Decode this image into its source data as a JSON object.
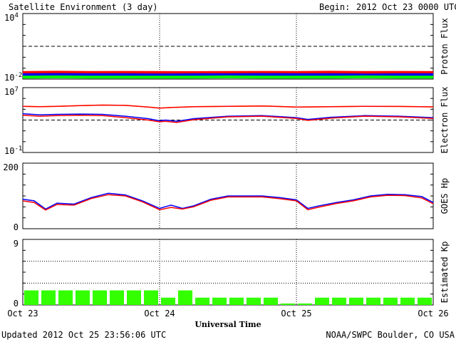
{
  "header": {
    "title": "Satellite Environment (3 day)",
    "begin_label": "Begin:",
    "begin_value": "2012 Oct 23 0000 UTC"
  },
  "footer": {
    "updated": "Updated 2012 Oct 25 23:56:06 UTC",
    "credit": "NOAA/SWPC Boulder, CO USA"
  },
  "colors": {
    "red": "#ff0000",
    "blue": "#0000ff",
    "green": "#00ff00",
    "orange": "#ff9900",
    "kp_bar": "#33ff00"
  },
  "chart_data": [
    {
      "type": "line",
      "name": "proton-flux",
      "ylabel": "Proton Flux",
      "yscale": "log",
      "ylim": [
        0.01,
        10000
      ],
      "yticks": [
        {
          "base": "10",
          "exp": "4",
          "value": 10000
        },
        {
          "base": "10",
          "exp": "-2",
          "value": 0.01
        }
      ],
      "dashed_threshold": 10,
      "xlim": [
        0,
        72
      ],
      "series": [
        {
          "color": "red",
          "x": [
            0,
            6,
            12,
            18,
            24,
            30,
            36,
            42,
            48,
            54,
            60,
            66,
            72
          ],
          "values": [
            0.04,
            0.042,
            0.04,
            0.041,
            0.04,
            0.039,
            0.04,
            0.041,
            0.04,
            0.042,
            0.04,
            0.041,
            0.04
          ]
        },
        {
          "color": "blue",
          "x": [
            0,
            6,
            12,
            18,
            24,
            30,
            36,
            42,
            48,
            54,
            60,
            66,
            72
          ],
          "values": [
            0.025,
            0.026,
            0.025,
            0.025,
            0.024,
            0.025,
            0.025,
            0.026,
            0.025,
            0.025,
            0.024,
            0.025,
            0.025
          ]
        },
        {
          "color": "green",
          "x": [
            0,
            6,
            12,
            18,
            24,
            30,
            36,
            42,
            48,
            54,
            60,
            66,
            72
          ],
          "values": [
            0.015,
            0.016,
            0.015,
            0.015,
            0.015,
            0.015,
            0.016,
            0.015,
            0.015,
            0.015,
            0.016,
            0.015,
            0.015
          ]
        }
      ]
    },
    {
      "type": "line",
      "name": "electron-flux",
      "ylabel": "Electron Flux",
      "yscale": "log",
      "ylim": [
        0.1,
        10000000
      ],
      "yticks": [
        {
          "base": "10",
          "exp": "7",
          "value": 10000000
        },
        {
          "base": "10",
          "exp": "-1",
          "value": 0.1
        }
      ],
      "dashed_threshold": 1000,
      "xlim": [
        0,
        72
      ],
      "series": [
        {
          "color": "orange",
          "x": [
            0,
            3,
            6,
            10,
            14,
            18,
            22,
            24,
            26,
            30,
            36,
            42,
            48,
            54,
            60,
            66,
            72
          ],
          "values": [
            50000,
            45000,
            50000,
            60000,
            70000,
            65000,
            40000,
            30000,
            35000,
            45000,
            50000,
            55000,
            40000,
            45000,
            50000,
            48000,
            42000
          ]
        },
        {
          "color": "red",
          "x": [
            0,
            3,
            6,
            10,
            14,
            18,
            22,
            24,
            26,
            30,
            36,
            42,
            48,
            54,
            60,
            66,
            72
          ],
          "values": [
            50000,
            45000,
            50000,
            60000,
            70000,
            65000,
            40000,
            30000,
            35000,
            45000,
            50000,
            55000,
            40000,
            45000,
            50000,
            48000,
            42000
          ]
        },
        {
          "color": "blue",
          "x": [
            0,
            3,
            6,
            10,
            14,
            18,
            22,
            24,
            25,
            27,
            30,
            36,
            42,
            48,
            50,
            54,
            60,
            66,
            72
          ],
          "values": [
            6000,
            4500,
            5000,
            5500,
            5000,
            3000,
            1500,
            800,
            1000,
            700,
            1500,
            3000,
            3500,
            2000,
            1200,
            2200,
            3500,
            3000,
            2000
          ]
        },
        {
          "color": "red",
          "x": [
            0,
            3,
            6,
            10,
            14,
            18,
            22,
            24,
            25,
            27,
            30,
            36,
            42,
            48,
            50,
            54,
            60,
            66,
            72
          ],
          "values": [
            4000,
            3000,
            3500,
            4000,
            3500,
            2000,
            1000,
            600,
            700,
            500,
            1100,
            2500,
            3000,
            1600,
            900,
            1700,
            3000,
            2500,
            1600
          ]
        }
      ]
    },
    {
      "type": "line",
      "name": "goes-hp",
      "ylabel": "GOES Hp",
      "yscale": "linear",
      "ylim": [
        0,
        200
      ],
      "yticks": [
        {
          "base": "200",
          "exp": "",
          "value": 200
        },
        {
          "base": "0",
          "exp": "",
          "value": 0
        }
      ],
      "xlim": [
        0,
        72
      ],
      "series": [
        {
          "color": "blue",
          "x": [
            0,
            2,
            4,
            6,
            9,
            12,
            15,
            18,
            21,
            24,
            26,
            28,
            30,
            33,
            36,
            39,
            42,
            45,
            48,
            50,
            52,
            55,
            58,
            61,
            64,
            67,
            70,
            72
          ],
          "values": [
            90,
            85,
            60,
            78,
            75,
            95,
            108,
            103,
            85,
            62,
            72,
            62,
            70,
            90,
            100,
            100,
            100,
            95,
            88,
            62,
            70,
            80,
            88,
            100,
            105,
            104,
            98,
            80
          ]
        },
        {
          "color": "red",
          "x": [
            0,
            2,
            4,
            6,
            9,
            12,
            15,
            18,
            21,
            24,
            26,
            28,
            30,
            33,
            36,
            39,
            42,
            45,
            48,
            50,
            52,
            55,
            58,
            61,
            64,
            67,
            70,
            72
          ],
          "values": [
            85,
            80,
            57,
            74,
            72,
            92,
            104,
            100,
            82,
            58,
            65,
            60,
            67,
            87,
            97,
            97,
            97,
            92,
            85,
            58,
            66,
            77,
            85,
            97,
            102,
            101,
            94,
            76
          ]
        }
      ]
    },
    {
      "type": "bar",
      "name": "estimated-kp",
      "ylabel": "Estimated Kp",
      "ylim": [
        0,
        9
      ],
      "yticks": [
        {
          "base": "9",
          "exp": "",
          "value": 9
        },
        {
          "base": "0",
          "exp": "",
          "value": 0
        }
      ],
      "bar_hours": 3,
      "values": [
        2,
        2,
        2,
        2,
        2,
        2,
        2,
        2,
        1,
        2,
        1,
        1,
        1,
        1,
        1,
        0.2,
        0.2,
        1,
        1,
        1,
        1,
        1,
        1,
        1
      ],
      "x_ticks": [
        "Oct 23",
        "Oct 24",
        "Oct 25",
        "Oct 26"
      ],
      "xlabel": "Universal Time"
    }
  ]
}
